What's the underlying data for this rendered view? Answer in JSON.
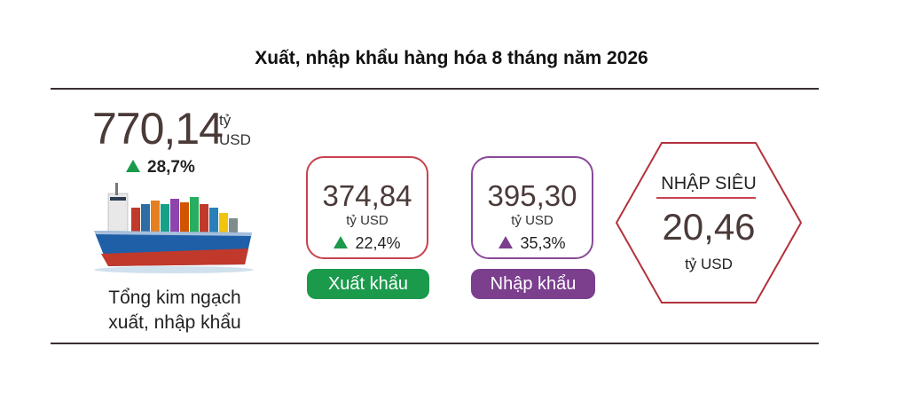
{
  "header": {
    "title": "Xuất, nhập khẩu hàng hóa 8 tháng năm 2026"
  },
  "total": {
    "value": "770,14",
    "unit_line1": "tỷ",
    "unit_line2": "USD",
    "change": "28,7%",
    "label_line1": "Tổng kim ngạch",
    "label_line2": "xuất, nhập khẩu",
    "icon": "cargo-ship-icon"
  },
  "export": {
    "value": "374,84",
    "unit": "tỷ USD",
    "change": "22,4%",
    "label": "Xuất khẩu",
    "color": "#1b9a4c",
    "border_color": "#c8424e"
  },
  "import": {
    "value": "395,30",
    "unit": "tỷ USD",
    "change": "35,3%",
    "label": "Nhập khẩu",
    "color": "#7b3f8e",
    "border_color": "#8a4a98"
  },
  "trade_deficit": {
    "label": "NHẬP SIÊU",
    "value": "20,46",
    "unit": "tỷ USD",
    "border_color": "#b3323d"
  }
}
